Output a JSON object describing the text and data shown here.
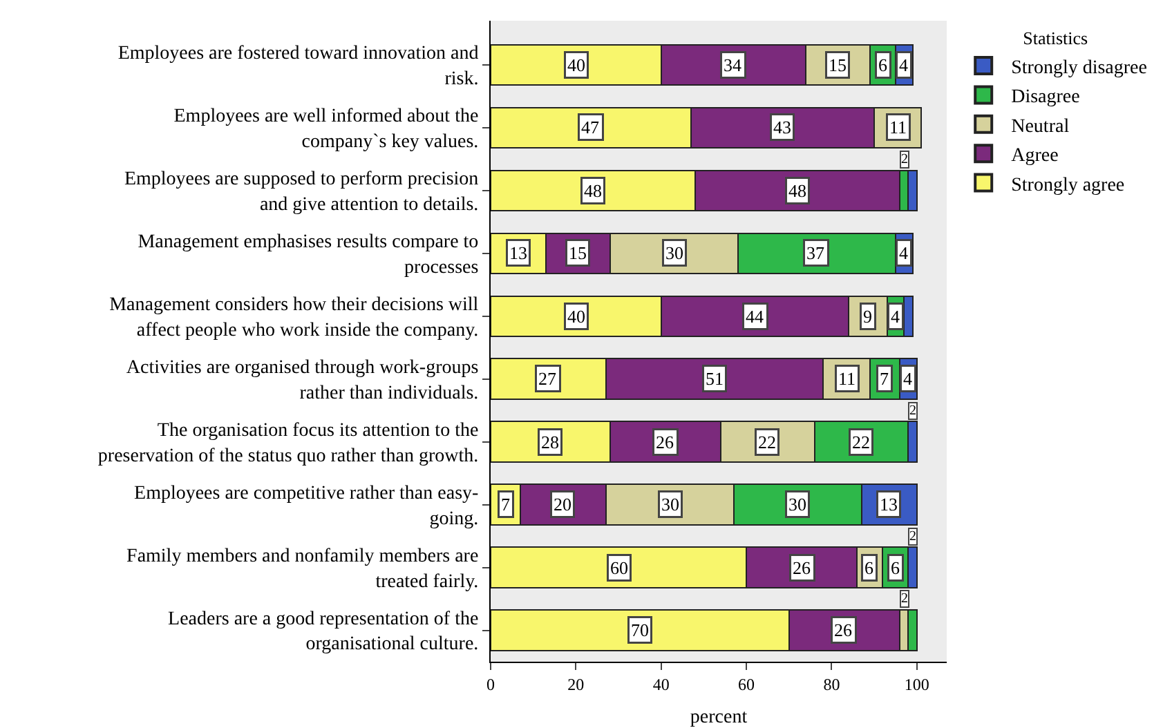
{
  "chart_data": {
    "type": "bar",
    "orientation": "horizontal",
    "stacked": true,
    "categories": [
      "Employees are fostered toward innovation and\nrisk.",
      "Employees are well informed about the\ncompany`s key values.",
      "Employees are supposed to perform precision\nand give attention to details.",
      "Management emphasises results compare to\nprocesses",
      "Management considers how their decisions will\naffect people who work inside the company.",
      "Activities are organised through work-groups\nrather than individuals.",
      "The organisation focus its attention to the\npreservation of the status quo rather than growth.",
      "Employees are competitive rather than easy-\ngoing.",
      "Family members and nonfamily members are\ntreated fairly.",
      "Leaders are a good representation of the\norganisational culture."
    ],
    "series": [
      {
        "name": "Strongly agree",
        "color": "#f8f66c",
        "values": [
          40,
          47,
          48,
          13,
          40,
          27,
          28,
          7,
          60,
          70
        ],
        "value_labels": [
          "40",
          "47",
          "48",
          "13",
          "40",
          "27",
          "28",
          "7",
          "60",
          "70"
        ]
      },
      {
        "name": "Agree",
        "color": "#7b2a7c",
        "values": [
          34,
          43,
          48,
          15,
          44,
          51,
          26,
          20,
          26,
          26
        ],
        "value_labels": [
          "34",
          "43",
          "48",
          "15",
          "44",
          "51",
          "26",
          "20",
          "26",
          "26"
        ]
      },
      {
        "name": "Neutral",
        "color": "#d6d29c",
        "values": [
          15,
          11,
          null,
          30,
          9,
          11,
          22,
          30,
          6,
          2
        ],
        "value_labels": [
          "15",
          "11",
          null,
          "30",
          "9",
          "11",
          "22",
          "30",
          "6",
          "2"
        ]
      },
      {
        "name": "Disagree",
        "color": "#2eb84a",
        "values": [
          6,
          null,
          2,
          37,
          4,
          7,
          22,
          30,
          6,
          2
        ],
        "value_labels": [
          "6",
          null,
          "2",
          "37",
          "4",
          "7",
          "22",
          "30",
          "6",
          null
        ]
      },
      {
        "name": "Strongly disagree",
        "color": "#3a5bc4",
        "values": [
          4,
          null,
          2,
          4,
          2,
          4,
          2,
          13,
          2,
          null
        ],
        "value_labels": [
          "4",
          null,
          null,
          "4",
          null,
          "4",
          "2",
          "13",
          "2",
          null
        ]
      }
    ],
    "xlabel": "percent",
    "legend_title": "Statistics",
    "legend": "right",
    "xlim": [
      0,
      107
    ],
    "xticks": [
      0,
      20,
      40,
      60,
      80,
      100
    ],
    "grid": false
  }
}
